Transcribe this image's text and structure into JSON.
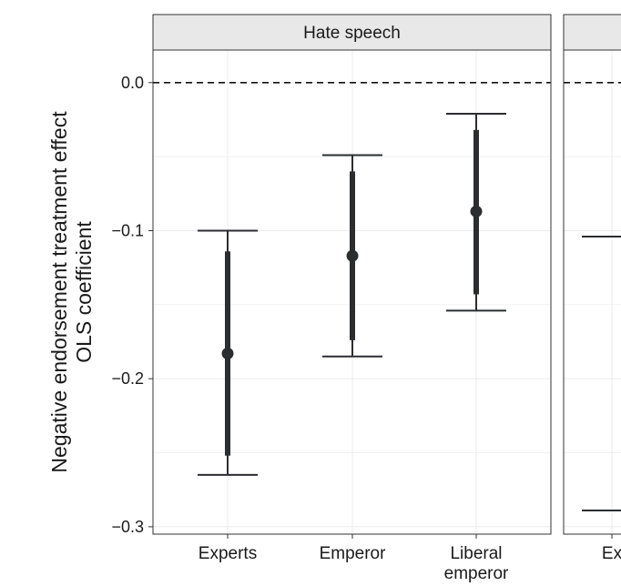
{
  "chart_data": {
    "type": "errorbar",
    "y_axis_title_line1": "Negative endorsement treatment effect",
    "y_axis_title_line2": "OLS coefficient",
    "ylim": [
      -0.305,
      0.022
    ],
    "yticks": [
      {
        "value": 0.0,
        "label": "0.0"
      },
      {
        "value": -0.1,
        "label": "−0.1"
      },
      {
        "value": -0.2,
        "label": "−0.2"
      },
      {
        "value": -0.3,
        "label": "−0.3"
      }
    ],
    "reference_line": {
      "value": 0.0,
      "style": "dashed"
    },
    "grid": true,
    "panels": [
      {
        "strip_label": "Hate speech",
        "categories": [
          {
            "lines": [
              "Experts"
            ]
          },
          {
            "lines": [
              "Emperor"
            ]
          },
          {
            "lines": [
              "Liberal",
              "emperor"
            ]
          }
        ],
        "estimates": [
          {
            "category": "Experts",
            "estimate": -0.183,
            "ci90_low": -0.252,
            "ci90_high": -0.114,
            "ci95_low": -0.265,
            "ci95_high": -0.1
          },
          {
            "category": "Emperor",
            "estimate": -0.117,
            "ci90_low": -0.174,
            "ci90_high": -0.06,
            "ci95_low": -0.185,
            "ci95_high": -0.049
          },
          {
            "category": "Liberal emperor",
            "estimate": -0.087,
            "ci90_low": -0.143,
            "ci90_high": -0.032,
            "ci95_low": -0.154,
            "ci95_high": -0.021
          }
        ]
      },
      {
        "strip_label": "",
        "categories": [
          {
            "lines": [
              "Ex"
            ]
          }
        ],
        "estimates": [
          {
            "category": "Ex",
            "estimate": null,
            "ci95_high": -0.104,
            "ci95_low": -0.289
          }
        ]
      }
    ]
  },
  "colors": {
    "point": "#2b2d30",
    "strip_fill": "#e8e8e8",
    "border": "#333333",
    "grid": "#ebebeb",
    "text": "#1a1a1a"
  }
}
